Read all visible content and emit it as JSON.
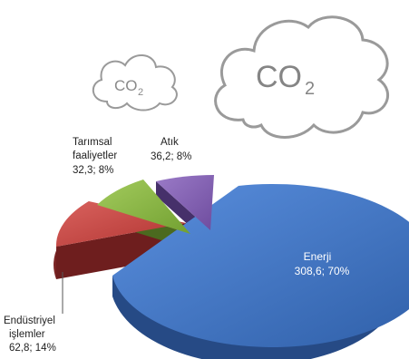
{
  "icons": {
    "cloud_small": "co2-cloud-icon",
    "cloud_large": "co2-cloud-icon",
    "co2_main": "CO",
    "co2_sub": "2"
  },
  "chart_data": {
    "type": "pie",
    "title": "",
    "unit": "",
    "slices": [
      {
        "name": "Enerji",
        "value": 308.6,
        "percent": 70,
        "label_name": "Enerji",
        "label_value": "308,6; 70%",
        "color": "#3f74c6",
        "side": "#24437a"
      },
      {
        "name": "Endüstriyel işlemler",
        "value": 62.8,
        "percent": 14,
        "label_lines": [
          "Endüstriyel",
          "işlemler",
          "62,8; 14%"
        ],
        "color": "#c7413e",
        "side": "#6e1e1e"
      },
      {
        "name": "Tarımsal faaliyetler",
        "value": 32.3,
        "percent": 8,
        "label_lines": [
          "Tarımsal",
          "faaliyetler",
          "32,3; 8%"
        ],
        "color": "#86b341",
        "side": "#4b6a1f"
      },
      {
        "name": "Atık",
        "value": 36.2,
        "percent": 8,
        "label_lines": [
          "Atık",
          "36,2; 8%"
        ],
        "color": "#8661b6",
        "side": "#46306a"
      }
    ]
  }
}
